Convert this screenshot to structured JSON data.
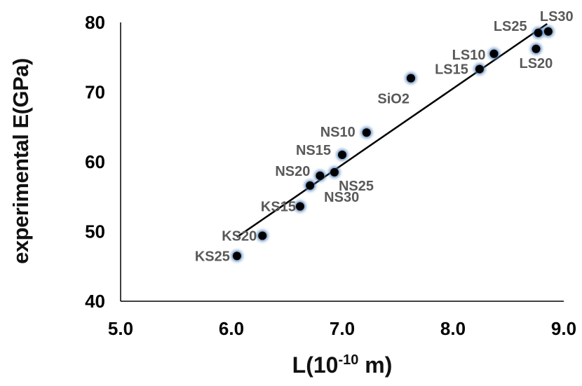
{
  "chart_data": {
    "type": "scatter",
    "title": "",
    "xlabel_base": "L(10",
    "xlabel_exp": "-10",
    "xlabel_unit": " m)",
    "ylabel": "experimental E(GPa)",
    "xlim": [
      5.0,
      9.0
    ],
    "ylim": [
      40,
      80
    ],
    "xticks": [
      "5.0",
      "6.0",
      "7.0",
      "8.0",
      "9.0"
    ],
    "yticks": [
      "40",
      "50",
      "60",
      "70",
      "80"
    ],
    "grid": false,
    "legend": "none",
    "points": [
      {
        "label": "KS25",
        "x": 6.05,
        "y": 46.5
      },
      {
        "label": "KS20",
        "x": 6.28,
        "y": 49.4
      },
      {
        "label": "KS15",
        "x": 6.62,
        "y": 53.6
      },
      {
        "label": "NS30",
        "x": 6.71,
        "y": 56.6
      },
      {
        "label": "NS20",
        "x": 6.8,
        "y": 58.0
      },
      {
        "label": "NS25",
        "x": 6.93,
        "y": 58.5
      },
      {
        "label": "NS15",
        "x": 7.0,
        "y": 61.0
      },
      {
        "label": "NS10",
        "x": 7.22,
        "y": 64.2
      },
      {
        "label": "SiO2",
        "x": 7.62,
        "y": 72.0
      },
      {
        "label": "LS15",
        "x": 8.24,
        "y": 73.3
      },
      {
        "label": "LS10",
        "x": 8.37,
        "y": 75.5
      },
      {
        "label": "LS20",
        "x": 8.75,
        "y": 76.2
      },
      {
        "label": "LS25",
        "x": 8.77,
        "y": 78.5
      },
      {
        "label": "LS30",
        "x": 8.86,
        "y": 78.7
      }
    ],
    "trendline": {
      "x": [
        6.05,
        8.85
      ],
      "y": [
        49.2,
        79.8
      ]
    },
    "colors": {
      "marker": "#000000",
      "marker_glow": "#4f81bd",
      "label": "#595959",
      "axis": "#000000",
      "tick_label": "#000000"
    }
  }
}
